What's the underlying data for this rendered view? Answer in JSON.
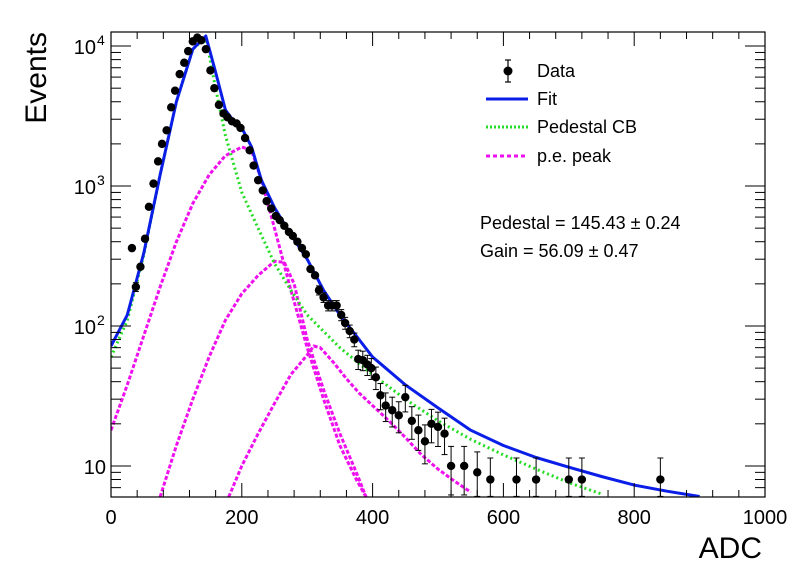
{
  "chart_data": {
    "type": "scatter",
    "xlabel": "ADC",
    "ylabel": "Events",
    "xlim": [
      0,
      1000
    ],
    "ylim": [
      6,
      12600
    ],
    "y_scale": "log",
    "grid": false,
    "legend_position": "top-right",
    "x_ticks": [
      "0",
      "200",
      "400",
      "600",
      "800",
      "1000"
    ],
    "y_ticks": [
      {
        "value": 10,
        "mantissa": "10",
        "exponent": ""
      },
      {
        "value": 100,
        "mantissa": "10",
        "exponent": "2"
      },
      {
        "value": 1000,
        "mantissa": "10",
        "exponent": "3"
      },
      {
        "value": 10000,
        "mantissa": "10",
        "exponent": "4"
      }
    ],
    "legend": [
      {
        "label": "Data",
        "marker": "point-errorbar",
        "color": "#000000"
      },
      {
        "label": "Fit",
        "marker": "solid-line",
        "color": "#0a1ee8"
      },
      {
        "label": "Pedestal CB",
        "marker": "dotted-line",
        "color": "#22dd22"
      },
      {
        "label": "p.e. peak",
        "marker": "dashed-line",
        "color": "#ee11ee"
      }
    ],
    "annotations": [
      {
        "text": "Pedestal = 145.43 ± 0.24"
      },
      {
        "text": "Gain = 56.09 ± 0.47"
      }
    ],
    "series": [
      {
        "name": "Data",
        "color": "#000000",
        "points": [
          [
            32,
            360
          ],
          [
            38,
            190
          ],
          [
            45,
            265
          ],
          [
            52,
            420
          ],
          [
            58,
            710
          ],
          [
            65,
            1040
          ],
          [
            72,
            1500
          ],
          [
            78,
            2000
          ],
          [
            85,
            2500
          ],
          [
            92,
            3650
          ],
          [
            98,
            4800
          ],
          [
            105,
            6300
          ],
          [
            112,
            7600
          ],
          [
            118,
            9200
          ],
          [
            125,
            10800
          ],
          [
            132,
            11500
          ],
          [
            138,
            11000
          ],
          [
            145,
            9500
          ],
          [
            152,
            6700
          ],
          [
            158,
            5000
          ],
          [
            165,
            3800
          ],
          [
            172,
            3300
          ],
          [
            178,
            3100
          ],
          [
            185,
            2900
          ],
          [
            192,
            2800
          ],
          [
            198,
            2600
          ],
          [
            205,
            2200
          ],
          [
            212,
            1800
          ],
          [
            218,
            1400
          ],
          [
            225,
            1100
          ],
          [
            232,
            930
          ],
          [
            238,
            780
          ],
          [
            245,
            690
          ],
          [
            252,
            610
          ],
          [
            258,
            570
          ],
          [
            265,
            520
          ],
          [
            272,
            470
          ],
          [
            278,
            440
          ],
          [
            285,
            400
          ],
          [
            292,
            360
          ],
          [
            298,
            325
          ],
          [
            305,
            255
          ],
          [
            312,
            230
          ],
          [
            318,
            180
          ],
          [
            325,
            160
          ],
          [
            332,
            140
          ],
          [
            338,
            140
          ],
          [
            345,
            140
          ],
          [
            352,
            120
          ],
          [
            358,
            105
          ],
          [
            365,
            92
          ],
          [
            372,
            80
          ],
          [
            378,
            58
          ],
          [
            385,
            57
          ],
          [
            392,
            53
          ],
          [
            398,
            50
          ],
          [
            405,
            43
          ],
          [
            412,
            32
          ],
          [
            420,
            27
          ],
          [
            430,
            25
          ],
          [
            440,
            23
          ],
          [
            450,
            31
          ],
          [
            460,
            21
          ],
          [
            470,
            18
          ],
          [
            480,
            15
          ],
          [
            490,
            20
          ],
          [
            500,
            19
          ],
          [
            510,
            17
          ],
          [
            520,
            10
          ],
          [
            540,
            10
          ],
          [
            560,
            9
          ],
          [
            580,
            8
          ],
          [
            620,
            8
          ],
          [
            650,
            8
          ],
          [
            700,
            8
          ],
          [
            720,
            8
          ],
          [
            840,
            8
          ]
        ]
      },
      {
        "name": "Fit",
        "color": "#0a1ee8",
        "points": [
          [
            0,
            72
          ],
          [
            25,
            120
          ],
          [
            50,
            330
          ],
          [
            75,
            1200
          ],
          [
            100,
            4000
          ],
          [
            125,
            9500
          ],
          [
            145,
            11800
          ],
          [
            160,
            6500
          ],
          [
            175,
            3500
          ],
          [
            190,
            2800
          ],
          [
            200,
            2600
          ],
          [
            215,
            1900
          ],
          [
            230,
            1100
          ],
          [
            250,
            700
          ],
          [
            275,
            450
          ],
          [
            300,
            300
          ],
          [
            325,
            180
          ],
          [
            350,
            120
          ],
          [
            375,
            85
          ],
          [
            400,
            60
          ],
          [
            450,
            38
          ],
          [
            500,
            26
          ],
          [
            550,
            18
          ],
          [
            600,
            14
          ],
          [
            650,
            11.5
          ],
          [
            700,
            9.8
          ],
          [
            750,
            8.4
          ],
          [
            800,
            7.3
          ],
          [
            850,
            6.6
          ],
          [
            900,
            6.05
          ]
        ]
      },
      {
        "name": "Pedestal CB",
        "color": "#22dd22",
        "points": [
          [
            0,
            60
          ],
          [
            25,
            110
          ],
          [
            50,
            320
          ],
          [
            75,
            1200
          ],
          [
            100,
            4000
          ],
          [
            125,
            9500
          ],
          [
            145,
            11500
          ],
          [
            160,
            5000
          ],
          [
            175,
            2300
          ],
          [
            200,
            900
          ],
          [
            225,
            500
          ],
          [
            250,
            280
          ],
          [
            275,
            180
          ],
          [
            300,
            120
          ],
          [
            350,
            70
          ],
          [
            400,
            45
          ],
          [
            450,
            30
          ],
          [
            500,
            21
          ],
          [
            550,
            15.5
          ],
          [
            600,
            12
          ],
          [
            650,
            9.5
          ],
          [
            700,
            7.6
          ],
          [
            750,
            6.3
          ]
        ]
      },
      {
        "name": "p.e. peak 1",
        "color": "#ee11ee",
        "points": [
          [
            0,
            18
          ],
          [
            25,
            38
          ],
          [
            50,
            85
          ],
          [
            75,
            190
          ],
          [
            100,
            400
          ],
          [
            125,
            750
          ],
          [
            150,
            1200
          ],
          [
            175,
            1650
          ],
          [
            200,
            1900
          ],
          [
            215,
            1800
          ],
          [
            230,
            1100
          ],
          [
            250,
            500
          ],
          [
            275,
            180
          ],
          [
            300,
            70
          ],
          [
            325,
            30
          ],
          [
            350,
            14
          ],
          [
            375,
            8
          ],
          [
            390,
            6
          ]
        ]
      },
      {
        "name": "p.e. peak 2",
        "color": "#ee11ee",
        "points": [
          [
            75,
            6
          ],
          [
            100,
            14
          ],
          [
            125,
            30
          ],
          [
            150,
            60
          ],
          [
            175,
            110
          ],
          [
            200,
            170
          ],
          [
            225,
            230
          ],
          [
            250,
            290
          ],
          [
            265,
            285
          ],
          [
            280,
            200
          ],
          [
            300,
            80
          ],
          [
            325,
            35
          ],
          [
            350,
            17
          ],
          [
            375,
            9
          ],
          [
            390,
            6
          ]
        ]
      },
      {
        "name": "p.e. peak 3",
        "color": "#ee11ee",
        "points": [
          [
            180,
            6
          ],
          [
            200,
            10
          ],
          [
            225,
            17
          ],
          [
            250,
            28
          ],
          [
            275,
            45
          ],
          [
            300,
            62
          ],
          [
            310,
            72
          ],
          [
            320,
            70
          ],
          [
            340,
            55
          ],
          [
            360,
            42
          ],
          [
            380,
            33
          ],
          [
            400,
            27
          ],
          [
            425,
            21
          ],
          [
            450,
            16
          ],
          [
            475,
            12
          ],
          [
            500,
            9.5
          ],
          [
            525,
            7.8
          ],
          [
            550,
            6.5
          ]
        ]
      }
    ]
  }
}
